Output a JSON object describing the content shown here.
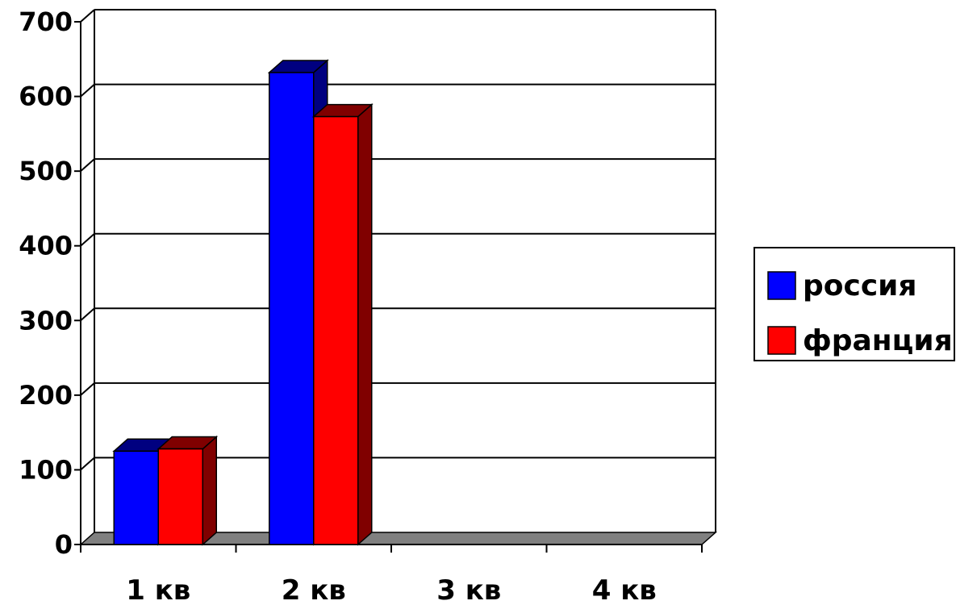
{
  "chart_data": {
    "type": "bar",
    "three_d": true,
    "categories": [
      "1 кв",
      "2 кв",
      "3 кв",
      "4 кв"
    ],
    "series": [
      {
        "name": "россия",
        "values": [
          125,
          632,
          0,
          0
        ],
        "color": "#0000ff",
        "side_color": "#000080"
      },
      {
        "name": "франция",
        "values": [
          128,
          573,
          0,
          0
        ],
        "color": "#ff0000",
        "side_color": "#800000"
      }
    ],
    "title": "",
    "xlabel": "",
    "ylabel": "",
    "ylim": [
      0,
      700
    ],
    "yticks": [
      "0",
      "100",
      "200",
      "300",
      "400",
      "500",
      "600",
      "700"
    ],
    "grid": true,
    "legend": "right",
    "floor_color": "#808080"
  }
}
